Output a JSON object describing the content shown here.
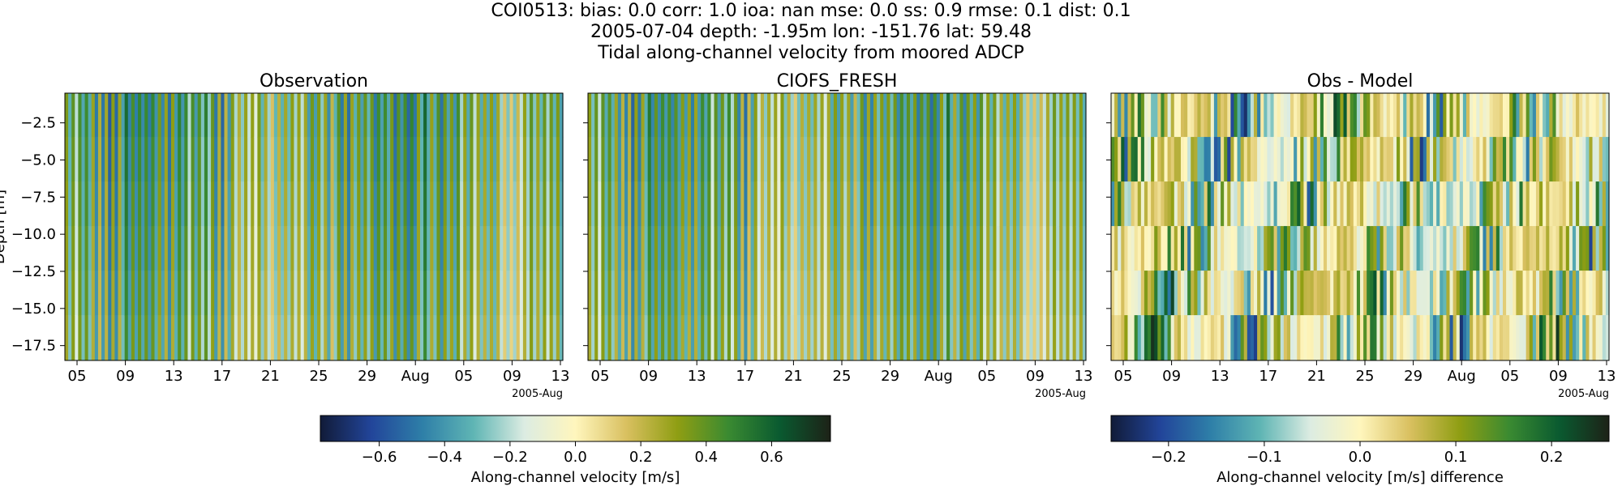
{
  "title_lines": [
    "COI0513: bias: 0.0  corr: 1.0  ioa: nan  mse: 0.0  ss: 0.9  rmse: 0.1  dist: 0.1",
    "2005-07-04 depth: -1.95m lon: -151.76 lat: 59.48",
    "Tidal along-channel velocity from moored ADCP"
  ],
  "chart_data": [
    {
      "type": "heatmap",
      "title": "Observation",
      "x_ticks": [
        "05",
        "09",
        "13",
        "17",
        "21",
        "25",
        "29",
        "Aug",
        "05",
        "09",
        "13"
      ],
      "x_offset_label": "2005-Aug",
      "ylabel": "Depth [m]",
      "ylim": [
        -18.5,
        -0.5
      ],
      "y_ticks": [
        "−2.5",
        "−5.0",
        "−7.5",
        "−10.0",
        "−12.5",
        "−15.0",
        "−17.5"
      ],
      "y_tick_values": [
        -2.5,
        -5.0,
        -7.5,
        -10.0,
        -12.5,
        -15.0,
        -17.5
      ],
      "depth_bins": [
        -1.95,
        -4.95,
        -7.95,
        -10.95,
        -13.95,
        -16.95
      ],
      "vmin": -0.78,
      "vmax": 0.78,
      "colormap": "delta",
      "shared_colorbar": "velocity"
    },
    {
      "type": "heatmap",
      "title": "CIOFS_FRESH",
      "x_ticks": [
        "05",
        "09",
        "13",
        "17",
        "21",
        "25",
        "29",
        "Aug",
        "05",
        "09",
        "13"
      ],
      "x_offset_label": "2005-Aug",
      "ylim": [
        -18.5,
        -0.5
      ],
      "vmin": -0.78,
      "vmax": 0.78,
      "colormap": "delta",
      "shared_colorbar": "velocity"
    },
    {
      "type": "heatmap",
      "title": "Obs - Model",
      "x_ticks": [
        "05",
        "09",
        "13",
        "17",
        "21",
        "25",
        "29",
        "Aug",
        "05",
        "09",
        "13"
      ],
      "x_offset_label": "2005-Aug",
      "ylim": [
        -18.5,
        -0.5
      ],
      "vmin": -0.26,
      "vmax": 0.26,
      "colormap": "delta",
      "colorbar": {
        "label": "Along-channel velocity [m/s] difference",
        "ticks": [
          "−0.2",
          "−0.1",
          "0.0",
          "0.1",
          "0.2"
        ],
        "values": [
          -0.2,
          -0.1,
          0.0,
          0.1,
          0.2
        ]
      }
    }
  ],
  "colorbars": {
    "velocity": {
      "label": "Along-channel velocity [m/s]",
      "ticks": [
        "−0.6",
        "−0.4",
        "−0.2",
        "0.0",
        "0.2",
        "0.4",
        "0.6"
      ],
      "values": [
        -0.6,
        -0.4,
        -0.2,
        0.0,
        0.2,
        0.4,
        0.6
      ],
      "vmin": -0.78,
      "vmax": 0.78
    }
  },
  "colormap_stops": [
    "#111b38",
    "#22459a",
    "#2e7fa8",
    "#5fb5b4",
    "#dcece2",
    "#fff6bd",
    "#d9c060",
    "#8f9e13",
    "#3a8a31",
    "#0a5a30",
    "#1d2217"
  ]
}
